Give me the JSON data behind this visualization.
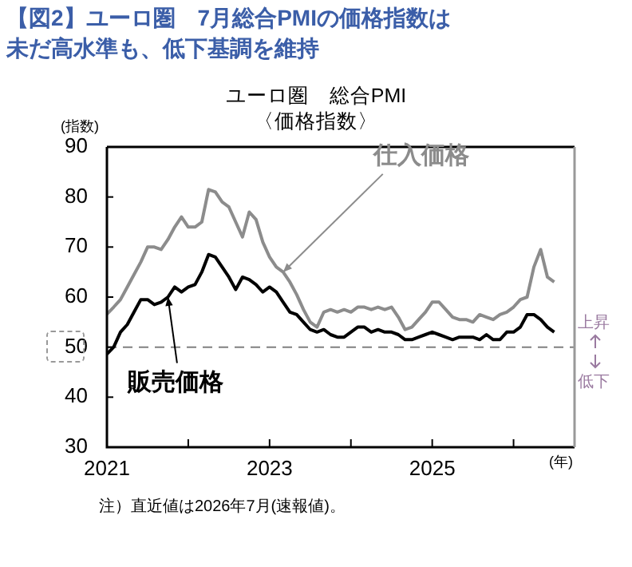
{
  "chart_data": {
    "type": "line",
    "title": "【図2】ユーロ圏　7月総合PMIの価格指数は未だ高水準も、低下基調を維持",
    "subtitle": "ユーロ圏　総合PMI\n〈価格指数〉",
    "ylabel": "(指数)",
    "xlabel": "(年)",
    "x": [
      "2021-01",
      "2021-02",
      "2021-03",
      "2021-04",
      "2021-05",
      "2021-06",
      "2021-07",
      "2021-08",
      "2021-09",
      "2021-10",
      "2021-11",
      "2021-12",
      "2022-01",
      "2022-02",
      "2022-03",
      "2022-04",
      "2022-05",
      "2022-06",
      "2022-07",
      "2022-08",
      "2022-09",
      "2022-10",
      "2022-11",
      "2022-12",
      "2023-01",
      "2023-02",
      "2023-03",
      "2023-04",
      "2023-05",
      "2023-06",
      "2023-07",
      "2023-08",
      "2023-09",
      "2023-10",
      "2023-11",
      "2023-12",
      "2024-01",
      "2024-02",
      "2024-03",
      "2024-04",
      "2024-05",
      "2024-06",
      "2024-07",
      "2024-08",
      "2024-09",
      "2024-10",
      "2024-11",
      "2024-12",
      "2025-01",
      "2025-02",
      "2025-03",
      "2025-04",
      "2025-05",
      "2025-06",
      "2025-07",
      "2025-08",
      "2025-09",
      "2025-10",
      "2025-11",
      "2025-12",
      "2026-01",
      "2026-02",
      "2026-03",
      "2026-04",
      "2026-05",
      "2026-06",
      "2026-07"
    ],
    "series": [
      {
        "name": "仕入価格",
        "color": "#8c8c8c",
        "values": [
          56.6,
          58,
          59.5,
          62,
          64.5,
          67,
          70,
          70,
          69.5,
          71.5,
          74,
          76,
          74,
          74,
          75,
          81.5,
          81,
          79,
          78,
          75,
          72,
          77,
          75.5,
          71,
          68,
          66,
          65,
          63,
          60.5,
          57.5,
          55,
          54,
          57,
          57.5,
          57,
          57.5,
          57,
          58,
          58,
          57.5,
          58,
          57.5,
          58,
          56,
          53.5,
          54,
          55.5,
          57,
          59,
          59,
          57.5,
          56,
          55.5,
          55.5,
          55,
          56.5,
          56,
          55.5,
          56.5,
          57,
          58,
          59.5,
          60,
          66,
          69.5,
          64,
          63
        ]
      },
      {
        "name": "販売価格",
        "color": "#000000",
        "values": [
          48.6,
          50,
          53,
          54.5,
          57,
          59.5,
          59.5,
          58.5,
          59,
          60,
          62,
          61,
          62,
          62.5,
          65,
          68.5,
          68,
          66,
          64,
          61.5,
          64,
          63.5,
          62.5,
          61,
          62,
          61,
          59,
          57,
          56.5,
          55,
          53.5,
          53,
          53.5,
          52.5,
          52,
          52,
          53,
          54,
          54,
          53,
          53.5,
          53,
          53,
          52.5,
          51.5,
          51.5,
          52,
          52.5,
          53,
          52.5,
          52,
          51.5,
          52,
          52,
          52,
          51.5,
          52.5,
          51.5,
          51.5,
          53,
          53,
          54,
          56.5,
          56.5,
          55.5,
          54,
          53
        ]
      }
    ],
    "xlim": [
      "2021-01",
      "2026-10"
    ],
    "xticks": [
      {
        "value": "2021-01",
        "label": "2021"
      },
      {
        "value": "2022-01",
        "label": null
      },
      {
        "value": "2023-01",
        "label": "2023"
      },
      {
        "value": "2024-01",
        "label": null
      },
      {
        "value": "2025-01",
        "label": "2025"
      },
      {
        "value": "2026-01",
        "label": null
      }
    ],
    "ylim": [
      30,
      90
    ],
    "yticks": [
      30,
      40,
      50,
      60,
      70,
      80,
      90
    ],
    "ref_lines": [
      {
        "axis": "y",
        "value": 50,
        "color": "#808080",
        "line_style": "dashed"
      }
    ],
    "annotations": [
      "上昇",
      "低下",
      "注）直近値は2026年7月(速報値)。"
    ],
    "grid": false,
    "legend": false,
    "marker": "none",
    "line_style": "solid"
  }
}
